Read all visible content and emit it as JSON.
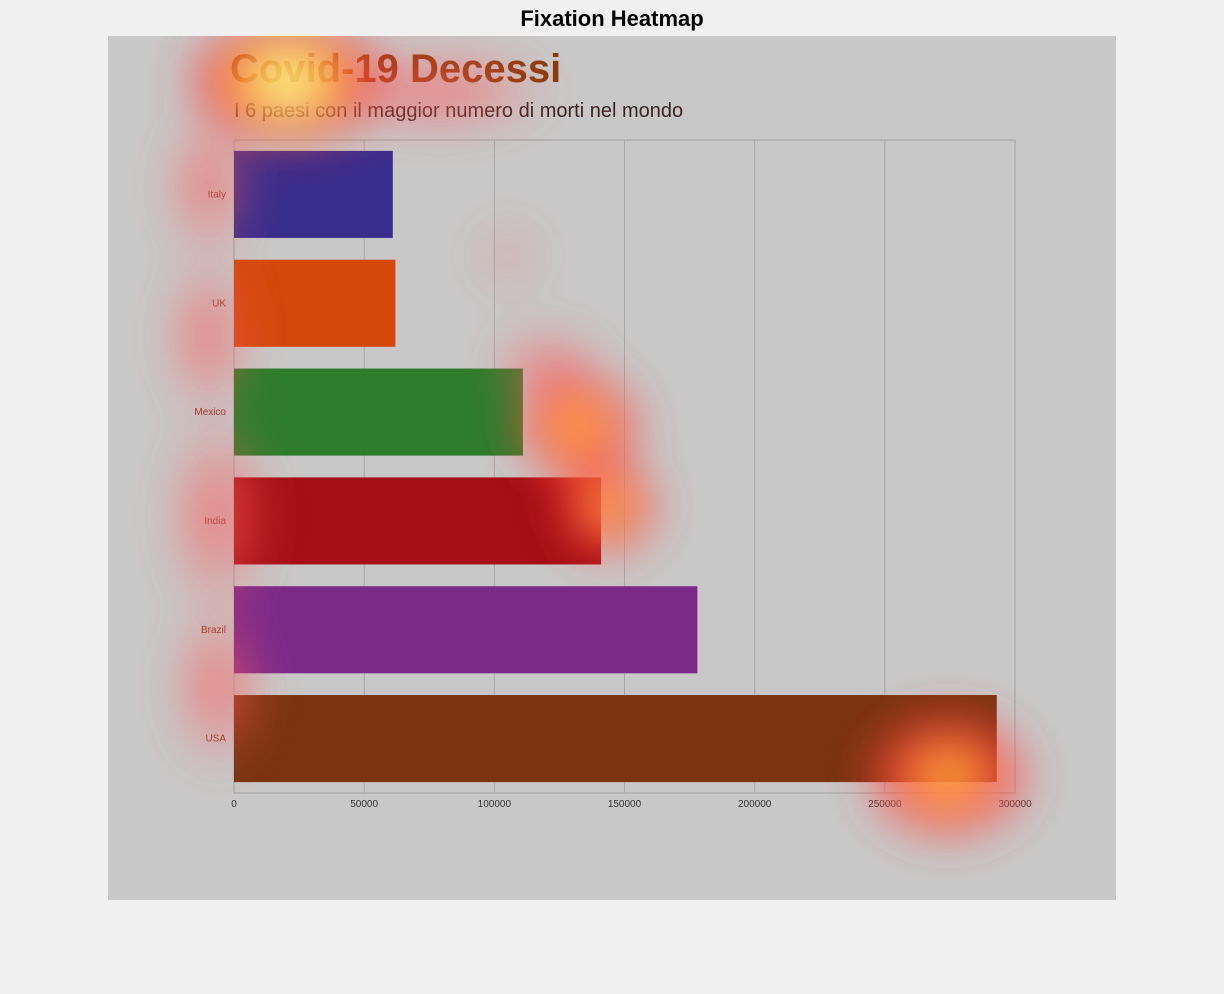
{
  "figure": {
    "title": "Fixation Heatmap"
  },
  "chart_data": {
    "type": "bar",
    "orientation": "horizontal",
    "title": "Covid-19 Decessi",
    "subtitle": "I 6 paesi con il maggior numero di morti nel mondo",
    "xlabel": "",
    "ylabel": "",
    "categories": [
      "Italy",
      "UK",
      "Mexico",
      "India",
      "Brazil",
      "USA"
    ],
    "values": [
      61000,
      62000,
      111000,
      141000,
      178000,
      293000
    ],
    "colors": [
      "#3a2e8c",
      "#d4480c",
      "#2d7d2d",
      "#a50f15",
      "#7b2a8a",
      "#7a3410"
    ],
    "xlim": [
      0,
      300000
    ],
    "xticks": [
      0,
      50000,
      100000,
      150000,
      200000,
      250000,
      300000
    ],
    "xtick_labels": [
      "0",
      "50000",
      "100000",
      "150000",
      "200000",
      "250000",
      "300000"
    ],
    "grid": true,
    "legend": "none"
  }
}
